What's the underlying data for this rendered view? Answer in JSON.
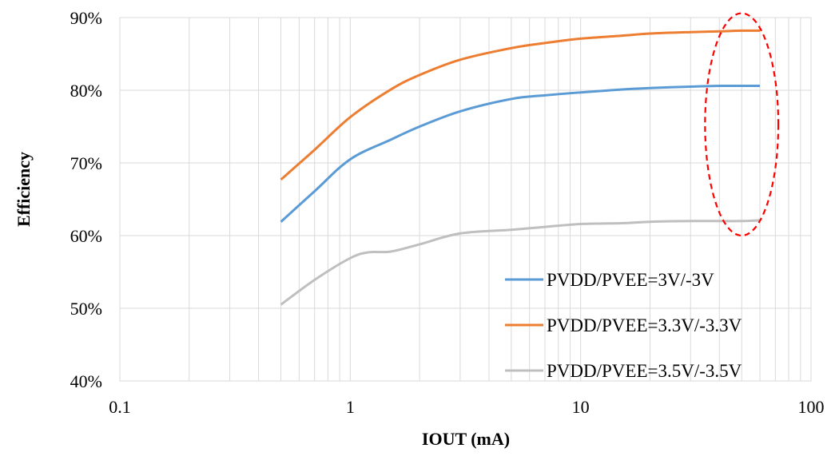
{
  "chart_data": {
    "type": "line",
    "x_scale": "log",
    "xlabel": "IOUT (mA)",
    "ylabel": "Efficiency",
    "xlim": [
      0.1,
      100
    ],
    "ylim": [
      40,
      90
    ],
    "x_ticks": [
      0.1,
      1,
      10,
      100
    ],
    "x_tick_labels": [
      "0.1",
      "1",
      "10",
      "100"
    ],
    "y_ticks": [
      40,
      50,
      60,
      70,
      80,
      90
    ],
    "y_tick_labels": [
      "40%",
      "50%",
      "60%",
      "70%",
      "80%",
      "90%"
    ],
    "grid": true,
    "legend_position": "bottom-right",
    "series": [
      {
        "name": "PVDD/PVEE=3V/-3V",
        "color": "#5B9BD5",
        "x": [
          0.5,
          0.7,
          1,
          1.5,
          2,
          3,
          5,
          7,
          10,
          15,
          20,
          30,
          40,
          50,
          60
        ],
        "y": [
          61.9,
          66.1,
          70.5,
          73.2,
          75.0,
          77.1,
          78.8,
          79.3,
          79.7,
          80.1,
          80.3,
          80.5,
          80.6,
          80.6,
          80.6
        ]
      },
      {
        "name": "PVDD/PVEE=3.3V/-3.3V",
        "color": "#ED7D31",
        "x": [
          0.5,
          0.7,
          1,
          1.5,
          2,
          3,
          5,
          7,
          10,
          15,
          20,
          30,
          40,
          50,
          60
        ],
        "y": [
          67.7,
          71.8,
          76.3,
          80.1,
          82.1,
          84.2,
          85.8,
          86.5,
          87.1,
          87.5,
          87.8,
          88.0,
          88.1,
          88.2,
          88.2
        ]
      },
      {
        "name": "PVDD/PVEE=3.5V/-3.5V",
        "color": "#BFBFBF",
        "x": [
          0.5,
          0.7,
          1,
          1.2,
          1.5,
          2,
          3,
          5,
          7,
          10,
          15,
          20,
          30,
          40,
          50,
          60
        ],
        "y": [
          50.5,
          53.9,
          56.9,
          57.7,
          57.8,
          58.8,
          60.3,
          60.8,
          61.2,
          61.6,
          61.7,
          61.9,
          62.0,
          62.0,
          62.0,
          62.1
        ]
      }
    ],
    "annotations": [
      {
        "type": "ellipse",
        "style": "dashed",
        "color": "#FF0000",
        "x_center": 50,
        "y_center": 75.3,
        "x_halfspan_decades": 0.159,
        "y_halfspan": 15.3
      }
    ]
  }
}
